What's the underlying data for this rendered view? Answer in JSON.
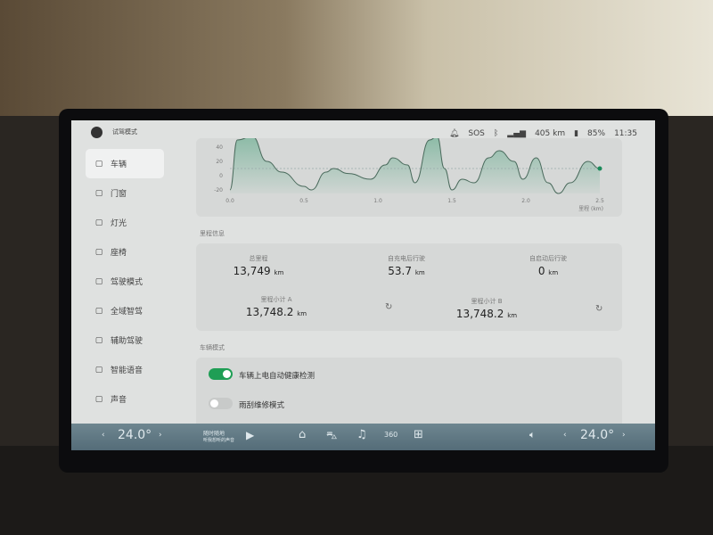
{
  "status": {
    "mode_label": "试驾模式",
    "sos": "SOS",
    "range": "405 km",
    "battery": "85%",
    "time": "11:35"
  },
  "sidebar": {
    "items": [
      {
        "label": "车辆",
        "icon": "car-icon",
        "active": true
      },
      {
        "label": "门窗",
        "icon": "door-icon"
      },
      {
        "label": "灯光",
        "icon": "light-icon"
      },
      {
        "label": "座椅",
        "icon": "seat-icon"
      },
      {
        "label": "驾驶模式",
        "icon": "drive-mode-icon"
      },
      {
        "label": "全域智驾",
        "icon": "smart-drive-icon"
      },
      {
        "label": "辅助驾驶",
        "icon": "assist-drive-icon"
      },
      {
        "label": "智能语音",
        "icon": "mic-icon"
      },
      {
        "label": "声音",
        "icon": "speaker-icon"
      }
    ]
  },
  "chart_data": {
    "type": "area",
    "xlabel": "里程 (km)",
    "ylabel": "",
    "xlim": [
      0,
      2.5
    ],
    "ylim": [
      -25,
      55
    ],
    "xticks": [
      "0.0",
      "0.5",
      "1.0",
      "1.5",
      "2.0",
      "2.5"
    ],
    "yticks": [
      "40",
      "20",
      "0",
      "-20"
    ],
    "reference_line": 10,
    "color": "#4fa37f",
    "x": [
      0,
      0.05,
      0.15,
      0.25,
      0.35,
      0.5,
      0.55,
      0.65,
      0.7,
      0.8,
      0.95,
      1.05,
      1.1,
      1.2,
      1.25,
      1.35,
      1.4,
      1.45,
      1.5,
      1.57,
      1.65,
      1.75,
      1.82,
      1.92,
      1.98,
      2.07,
      2.15,
      2.22,
      2.3,
      2.42,
      2.5
    ],
    "y": [
      -20,
      50,
      55,
      20,
      5,
      -15,
      -20,
      5,
      10,
      3,
      -5,
      15,
      25,
      15,
      -10,
      50,
      55,
      10,
      -20,
      -5,
      -10,
      25,
      35,
      20,
      -5,
      25,
      -10,
      -25,
      -10,
      20,
      10
    ]
  },
  "odometer": {
    "section_title": "里程信息",
    "total": {
      "label": "总里程",
      "value": "13,749",
      "unit": "km"
    },
    "since_charge": {
      "label": "自充电后行驶",
      "value": "53.7",
      "unit": "km"
    },
    "since_start": {
      "label": "自启动后行驶",
      "value": "0",
      "unit": "km"
    },
    "trip_a": {
      "label": "里程小计 A",
      "value": "13,748.2",
      "unit": "km"
    },
    "trip_b": {
      "label": "里程小计 B",
      "value": "13,748.2",
      "unit": "km"
    }
  },
  "vehicle_mode": {
    "section_title": "车辆模式",
    "health_check": {
      "label": "车辆上电自动健康检测",
      "on": true
    },
    "wiper_service": {
      "label": "雨刮维修模式",
      "on": false
    }
  },
  "dock": {
    "temp_left": "24.0°",
    "temp_right": "24.0°",
    "media_title": "随时随地",
    "media_subtitle": "听我想听的声音",
    "view360": "360"
  },
  "colors": {
    "accent": "#1f9e55"
  }
}
